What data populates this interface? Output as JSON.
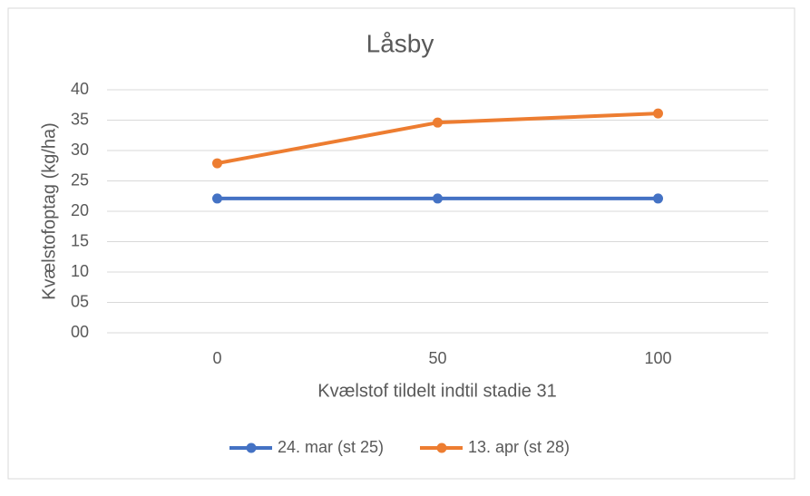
{
  "chart_data": {
    "type": "line",
    "title": "Låsby",
    "x_label": "Kvælstof tildelt indtil stadie 31",
    "y_label": "Kvælstofoptag (kg/ha)",
    "categories": [
      "0",
      "50",
      "100"
    ],
    "series": [
      {
        "name": "24. mar (st 25)",
        "color": "#4472c4",
        "values": [
          22.1,
          22.1,
          22.1
        ]
      },
      {
        "name": "13. apr (st 28)",
        "color": "#ed7d31",
        "values": [
          27.9,
          34.6,
          36.1
        ]
      }
    ],
    "ylim": [
      0,
      40
    ],
    "yticks": [
      {
        "value": 0,
        "label": "00"
      },
      {
        "value": 5,
        "label": "05"
      },
      10,
      15,
      20,
      25,
      30,
      35,
      40
    ],
    "grid": true,
    "legend": "bottom"
  }
}
